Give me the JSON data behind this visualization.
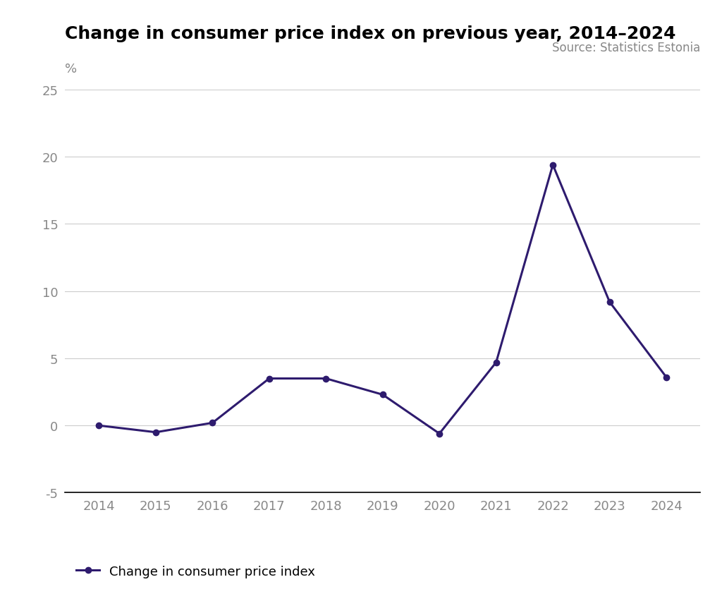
{
  "title": "Change in consumer price index on previous year, 2014–2024",
  "source": "Source: Statistics Estonia",
  "ylabel": "%",
  "years": [
    2014,
    2015,
    2016,
    2017,
    2018,
    2019,
    2020,
    2021,
    2022,
    2023,
    2024
  ],
  "values": [
    0.0,
    -0.5,
    0.2,
    3.5,
    3.5,
    2.3,
    -0.6,
    4.7,
    19.4,
    9.2,
    3.6
  ],
  "line_color": "#2e1b6e",
  "marker": "o",
  "marker_size": 6,
  "line_width": 2.2,
  "ylim": [
    -5,
    25
  ],
  "yticks": [
    -5,
    0,
    5,
    10,
    15,
    20,
    25
  ],
  "background_color": "#ffffff",
  "grid_color": "#cccccc",
  "tick_label_color": "#888888",
  "title_fontsize": 18,
  "pct_fontsize": 13,
  "tick_fontsize": 13,
  "source_fontsize": 12,
  "legend_fontsize": 13,
  "legend_label": "Change in consumer price index",
  "xlim_left": 2013.4,
  "xlim_right": 2024.6
}
